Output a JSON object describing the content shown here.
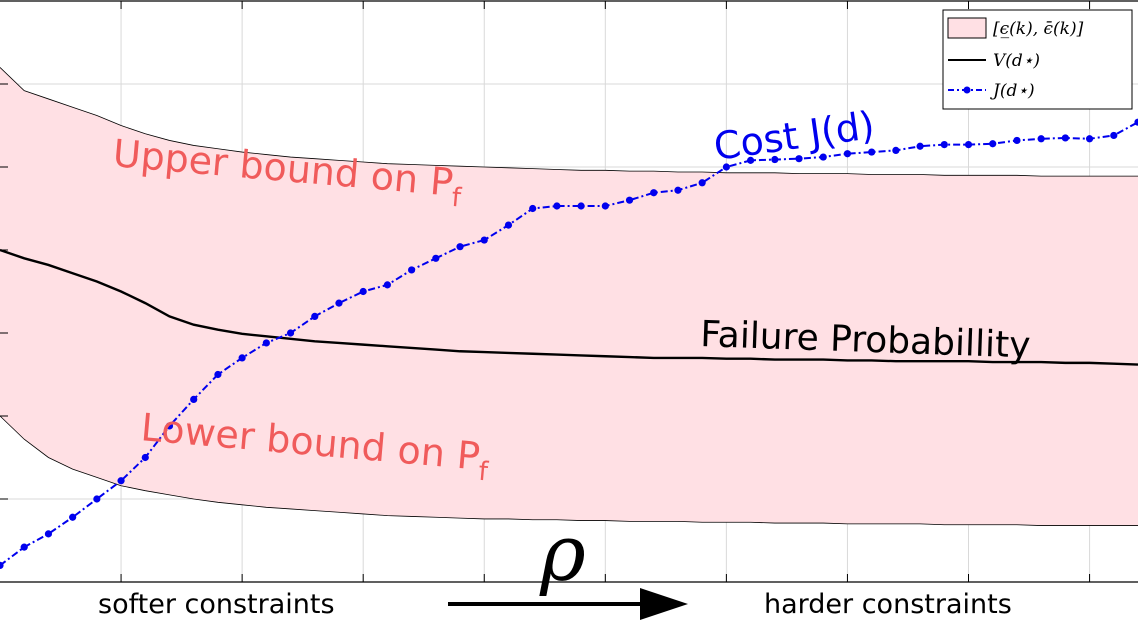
{
  "chart_data": {
    "type": "line",
    "title": "",
    "xlabel": "ρ",
    "ylabel": "",
    "x_tick_labels": {
      "left": "softer constraints",
      "right": "harder constraints"
    },
    "x": [
      0,
      1,
      2,
      3,
      4,
      5,
      6,
      7,
      8,
      9,
      10,
      11,
      12,
      13,
      14,
      15,
      16,
      17,
      18,
      19,
      20,
      21,
      22,
      23,
      24,
      25,
      26,
      27,
      28,
      29,
      30,
      31,
      32,
      33,
      34,
      35,
      36,
      37,
      38,
      39,
      40,
      41,
      42,
      43,
      44,
      45,
      46,
      47
    ],
    "xlim": [
      0,
      47
    ],
    "ylim": [
      0,
      7
    ],
    "grid": true,
    "legend_position": "top-right",
    "series": [
      {
        "name": "[ϵ̲(k), ϵ̄(k)]",
        "kind": "band",
        "color": "#ffe0e4",
        "lower": [
          2.0,
          1.72,
          1.5,
          1.36,
          1.26,
          1.16,
          1.1,
          1.05,
          1.0,
          0.96,
          0.93,
          0.9,
          0.88,
          0.86,
          0.84,
          0.82,
          0.8,
          0.79,
          0.78,
          0.77,
          0.76,
          0.76,
          0.75,
          0.75,
          0.74,
          0.74,
          0.73,
          0.73,
          0.73,
          0.72,
          0.72,
          0.72,
          0.71,
          0.71,
          0.71,
          0.7,
          0.7,
          0.7,
          0.7,
          0.69,
          0.69,
          0.69,
          0.69,
          0.68,
          0.68,
          0.68,
          0.68,
          0.68
        ],
        "upper": [
          6.2,
          5.92,
          5.82,
          5.72,
          5.62,
          5.5,
          5.4,
          5.32,
          5.26,
          5.22,
          5.18,
          5.15,
          5.12,
          5.1,
          5.08,
          5.06,
          5.04,
          5.03,
          5.02,
          5.01,
          5.0,
          4.99,
          4.98,
          4.97,
          4.96,
          4.96,
          4.95,
          4.95,
          4.94,
          4.94,
          4.93,
          4.93,
          4.93,
          4.92,
          4.92,
          4.92,
          4.91,
          4.91,
          4.91,
          4.9,
          4.9,
          4.9,
          4.9,
          4.89,
          4.89,
          4.89,
          4.89,
          4.89
        ]
      },
      {
        "name": "V(d⋆)",
        "kind": "line",
        "color": "#000000",
        "values": [
          4.0,
          3.9,
          3.82,
          3.72,
          3.62,
          3.5,
          3.36,
          3.2,
          3.1,
          3.04,
          2.99,
          2.96,
          2.93,
          2.9,
          2.88,
          2.86,
          2.84,
          2.82,
          2.8,
          2.78,
          2.77,
          2.76,
          2.75,
          2.74,
          2.73,
          2.72,
          2.71,
          2.7,
          2.7,
          2.7,
          2.69,
          2.69,
          2.68,
          2.68,
          2.68,
          2.67,
          2.67,
          2.66,
          2.66,
          2.66,
          2.66,
          2.65,
          2.65,
          2.65,
          2.64,
          2.64,
          2.63,
          2.62
        ]
      },
      {
        "name": "J(d⋆)",
        "kind": "dashdot-markers",
        "color": "#0000ee",
        "values": [
          0.2,
          0.42,
          0.58,
          0.78,
          1.0,
          1.22,
          1.5,
          1.88,
          2.2,
          2.5,
          2.7,
          2.88,
          3.0,
          3.2,
          3.36,
          3.5,
          3.58,
          3.76,
          3.9,
          4.04,
          4.12,
          4.3,
          4.5,
          4.53,
          4.53,
          4.53,
          4.6,
          4.69,
          4.72,
          4.81,
          5.0,
          5.08,
          5.09,
          5.1,
          5.12,
          5.16,
          5.18,
          5.2,
          5.25,
          5.27,
          5.27,
          5.28,
          5.32,
          5.34,
          5.35,
          5.34,
          5.38,
          5.54
        ]
      }
    ],
    "annotations": {
      "upper_bound": "Upper bound on P",
      "lower_bound": "Lower bound on P",
      "subscript": "f",
      "failure": "Failure Probabillity",
      "cost": "Cost J(d)"
    }
  }
}
